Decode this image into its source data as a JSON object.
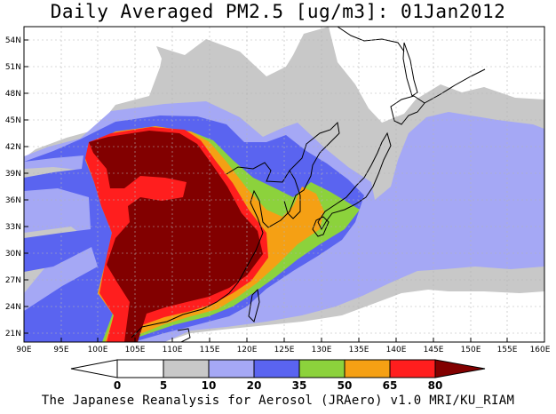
{
  "title": "Daily Averaged PM2.5 [ug/m3]: 01Jan2012",
  "credit": "The Japanese Reanalysis for Aerosol (JRAero) v1.0 MRI/KU_RIAM",
  "map": {
    "lon_range": [
      90,
      160
    ],
    "lat_range": [
      19.5,
      55
    ],
    "lon_ticks": [
      "90E",
      "95E",
      "100E",
      "105E",
      "110E",
      "115E",
      "120E",
      "125E",
      "130E",
      "135E",
      "140E",
      "145E",
      "150E",
      "155E",
      "160E"
    ],
    "lat_ticks": [
      "21N",
      "24N",
      "27N",
      "30N",
      "33N",
      "36N",
      "39N",
      "42N",
      "45N",
      "48N",
      "51N",
      "54N"
    ],
    "colors": {
      "lvl_5_10": "#c8c8c8",
      "lvl_10_20": "#a5a8f5",
      "lvl_20_35": "#5a64f0",
      "lvl_35_50": "#8cd23c",
      "lvl_50_65": "#f5a014",
      "lvl_65_80": "#ff1e1e",
      "lvl_80_plus": "#820000",
      "coast": "#000000",
      "grid": "#b4b4b4"
    }
  },
  "colorbar": {
    "labels": [
      "0",
      "5",
      "10",
      "20",
      "35",
      "50",
      "65",
      "80"
    ],
    "colors": [
      "#ffffff",
      "#c8c8c8",
      "#a5a8f5",
      "#5a64f0",
      "#8cd23c",
      "#f5a014",
      "#ff1e1e",
      "#820000"
    ],
    "unit": "ug/m3"
  }
}
